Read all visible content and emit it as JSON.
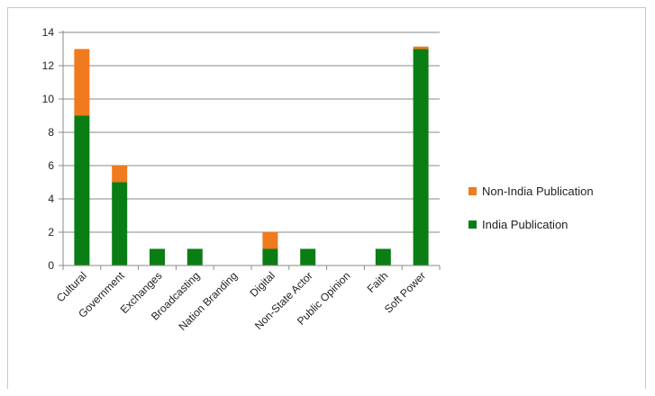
{
  "chart_data": {
    "type": "bar",
    "stacked": true,
    "categories": [
      "Cultural",
      "Government",
      "Exchanges",
      "Broadcasting",
      "Nation Branding",
      "Digital",
      "Non-State Actor",
      "Public Opinion",
      "Faith",
      "Soft Power"
    ],
    "series": [
      {
        "name": "India Publication",
        "color": "#0a7d14",
        "values": [
          9,
          5,
          1,
          1,
          0,
          1,
          1,
          0,
          1,
          13
        ]
      },
      {
        "name": "Non-India Publication",
        "color": "#f07a1e",
        "values": [
          4,
          1,
          0,
          0,
          0,
          1,
          0,
          0,
          0,
          0.15
        ]
      }
    ],
    "ylim": [
      0,
      14
    ],
    "yticks": [
      "0",
      "2",
      "4",
      "6",
      "8",
      "10",
      "12",
      "14"
    ],
    "grid": true,
    "legend": "right"
  }
}
